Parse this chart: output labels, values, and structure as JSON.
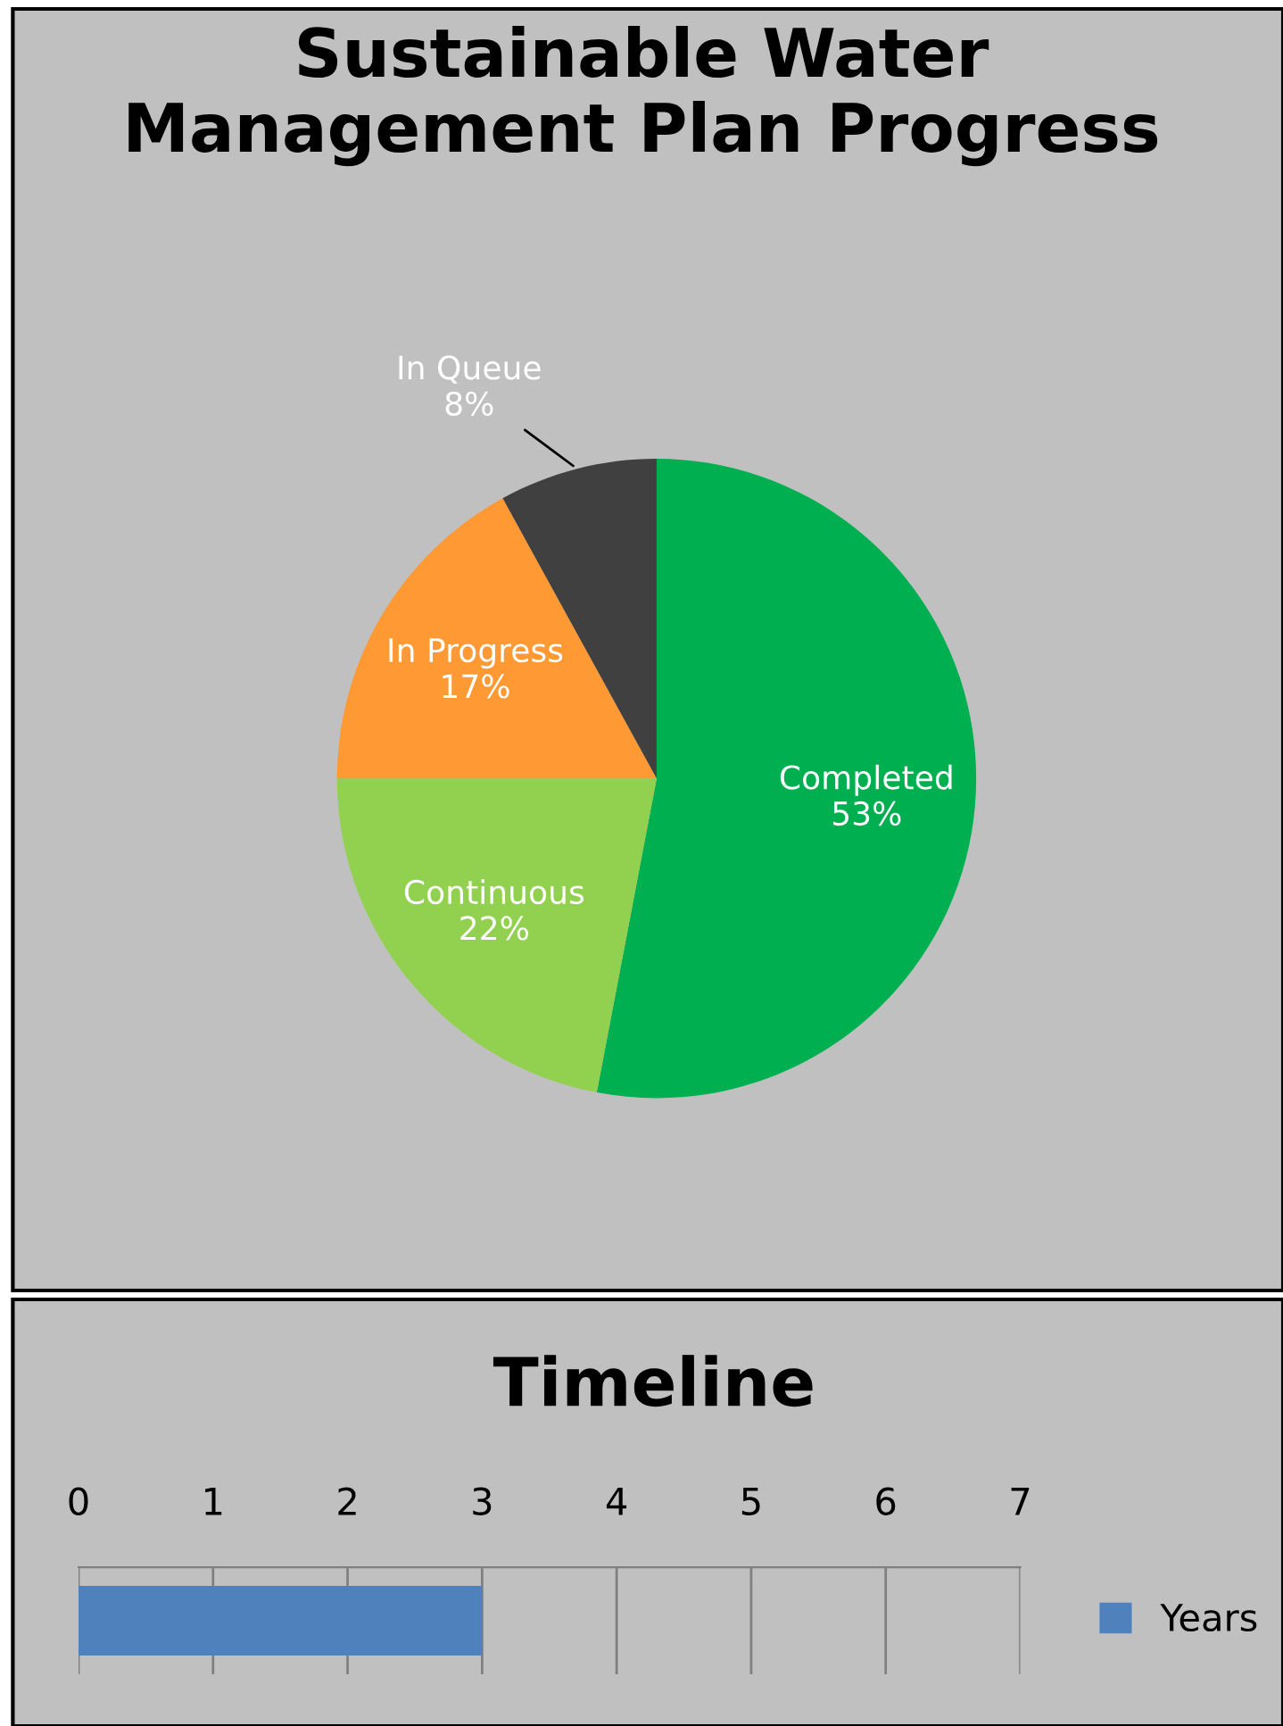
{
  "chart_data": [
    {
      "type": "pie",
      "title": "Sustainable Water\nManagement Plan Progress",
      "categories": [
        "Completed",
        "Continuous",
        "In Progress",
        "In Queue"
      ],
      "values": [
        53,
        22,
        17,
        8
      ],
      "colors": [
        "#00b050",
        "#92d050",
        "#ff9933",
        "#404040"
      ],
      "value_labels": [
        "53%",
        "22%",
        "17%",
        "8%"
      ],
      "legend": false
    },
    {
      "type": "bar",
      "orientation": "horizontal",
      "title": "Timeline",
      "categories": [
        null
      ],
      "series": [
        {
          "name": "Years",
          "color": "#4f81bd",
          "values": [
            3
          ]
        }
      ],
      "xlim": [
        0,
        7
      ],
      "xticks": [
        0,
        1,
        2,
        3,
        4,
        5,
        6,
        7
      ],
      "grid": "x",
      "legend": "right"
    }
  ]
}
